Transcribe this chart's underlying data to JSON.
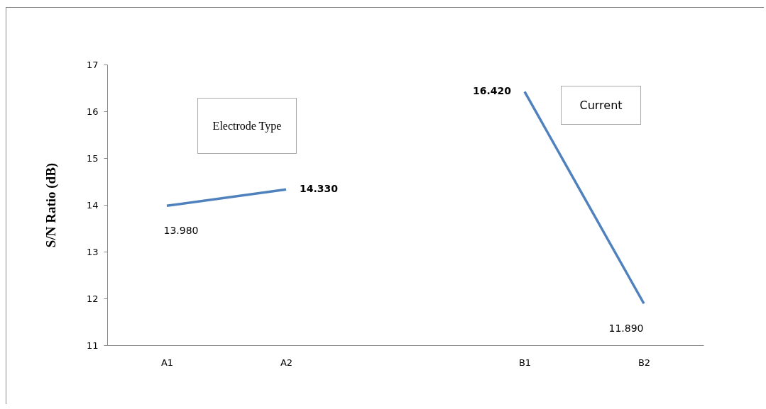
{
  "chart_data": {
    "type": "line",
    "ylabel": "S/N Ratio (dB)",
    "categories": [
      "A1",
      "A2",
      null,
      "B1",
      "B2"
    ],
    "series": [
      {
        "color": "#4f81bd",
        "values": [
          13.98,
          14.33,
          null,
          null,
          null
        ],
        "value_labels": [
          "13.980",
          "14.330",
          null,
          null,
          null
        ]
      },
      {
        "color": "#4f81bd",
        "values": [
          null,
          null,
          null,
          16.42,
          11.89
        ],
        "value_labels": [
          null,
          null,
          null,
          "16.420",
          "11.890"
        ]
      }
    ],
    "ylim": [
      11,
      17
    ],
    "yticks": [
      11,
      12,
      13,
      14,
      15,
      16,
      17
    ],
    "grid": false,
    "marker": "none",
    "line_style": "solid",
    "annotations": [
      "Electrode Type",
      "Current"
    ]
  }
}
